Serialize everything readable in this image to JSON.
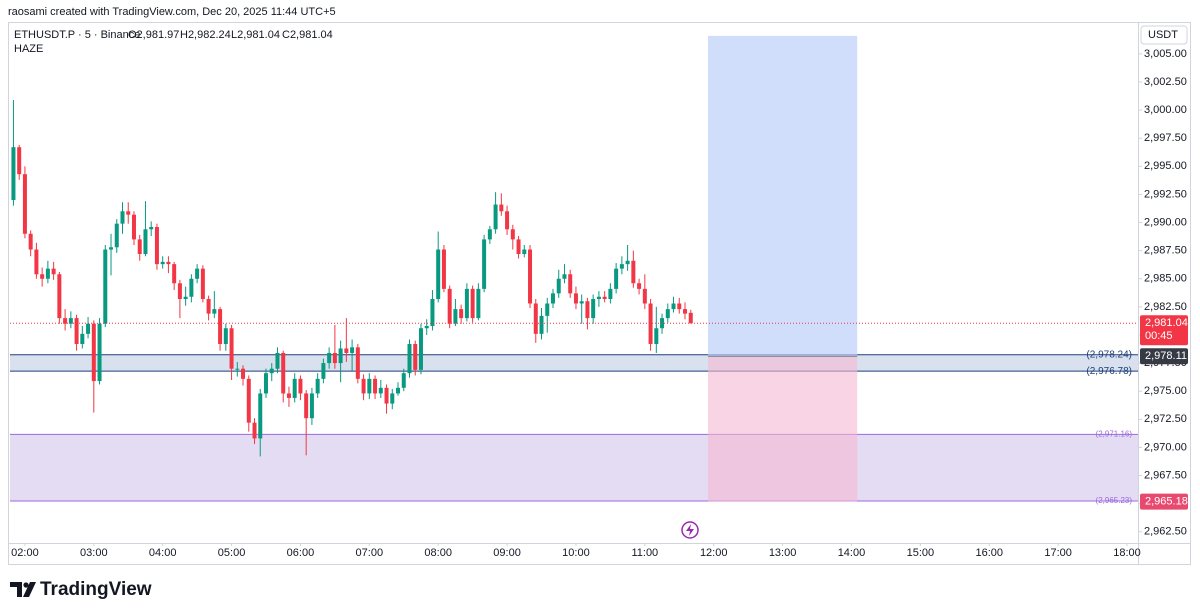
{
  "header": {
    "attribution": "raosami created with TradingView.com, Dec 20, 2025 11:44 UTC+5",
    "symbol": "ETHUSDT.P · 5 · Binance",
    "legend_values": [
      "O2,981.97",
      "H2,982.24",
      "L2,981.04",
      "C2,981.04"
    ],
    "indicator": "HAZE",
    "currency": "USDT",
    "logo": "TradingView"
  },
  "chart_data": {
    "type": "candlestick",
    "up_color": "#089981",
    "down_color": "#f23645",
    "grid": false,
    "x": [
      110,
      115,
      120,
      125,
      130,
      135,
      140,
      145,
      150,
      155,
      160,
      165,
      170,
      175,
      180,
      185,
      190,
      195,
      200,
      205,
      210,
      215,
      220,
      225,
      230,
      235,
      240,
      245,
      250,
      255,
      260,
      265,
      270,
      275,
      280,
      285,
      290,
      295,
      300,
      305,
      310,
      315,
      320,
      325,
      330,
      335,
      340,
      345,
      350,
      355,
      360,
      365,
      370,
      375,
      380,
      385,
      390,
      395,
      400,
      405,
      410,
      415,
      420,
      425,
      430,
      435,
      440,
      445,
      450,
      455,
      460,
      465,
      470,
      475,
      480,
      485,
      490,
      495,
      500,
      505,
      510,
      515,
      520,
      525,
      530,
      535,
      540,
      545,
      550,
      555,
      560,
      565,
      570,
      575,
      580,
      585,
      590,
      595,
      600,
      605,
      610,
      615,
      620,
      625,
      630,
      635,
      640,
      645,
      650,
      655,
      660,
      665,
      670,
      675,
      680,
      685,
      690,
      695,
      700
    ],
    "open": [
      2992.0,
      2996.7,
      2994.3,
      2989.0,
      2987.6,
      2985.4,
      2985.0,
      2985.9,
      2985.4,
      2981.5,
      2981.0,
      2981.5,
      2979.2,
      2980.1,
      2981.0,
      2975.9,
      2981.0,
      2987.6,
      2987.8,
      2989.9,
      2991.0,
      2990.7,
      2988.5,
      2987.2,
      2989.4,
      2989.6,
      2986.3,
      2986.5,
      2986.3,
      2984.6,
      2983.2,
      2983.4,
      2985.0,
      2985.9,
      2983.2,
      2981.9,
      2982.3,
      2979.2,
      2980.6,
      2977.0,
      2977.0,
      2976.1,
      2972.2,
      2970.8,
      2974.8,
      2976.6,
      2977.0,
      2978.4,
      2974.8,
      2974.4,
      2976.1,
      2974.8,
      2972.6,
      2974.8,
      2976.1,
      2977.5,
      2978.4,
      2977.5,
      2978.8,
      2978.4,
      2978.9,
      2976.1,
      2974.8,
      2976.1,
      2974.8,
      2975.3,
      2973.9,
      2974.8,
      2975.3,
      2976.6,
      2979.2,
      2976.9,
      2980.6,
      2980.8,
      2983.2,
      2987.6,
      2984.1,
      2981.0,
      2982.3,
      2981.5,
      2984.1,
      2981.5,
      2984.1,
      2988.5,
      2989.4,
      2991.6,
      2991.0,
      2989.4,
      2988.5,
      2987.2,
      2987.6,
      2982.8,
      2980.1,
      2981.7,
      2982.8,
      2983.7,
      2985.0,
      2985.4,
      2983.7,
      2982.8,
      2983.0,
      2981.5,
      2983.2,
      2983.4,
      2983.2,
      2984.1,
      2985.9,
      2986.3,
      2986.6,
      2984.6,
      2984.1,
      2982.8,
      2979.2,
      2980.6,
      2981.5,
      2982.3,
      2982.8,
      2982.3,
      2981.97
    ],
    "high": [
      3000.9,
      2996.9,
      2995.0,
      2989.3,
      2988.2,
      2986.0,
      2986.6,
      2986.5,
      2985.6,
      2982.3,
      2982.1,
      2981.8,
      2980.8,
      2981.6,
      2981.3,
      2981.5,
      2988.0,
      2989.0,
      2990.3,
      2991.8,
      2991.8,
      2991.0,
      2988.9,
      2991.9,
      2990.1,
      2989.9,
      2987.0,
      2987.0,
      2986.5,
      2984.9,
      2984.3,
      2985.4,
      2986.3,
      2986.2,
      2983.5,
      2983.9,
      2982.5,
      2981.0,
      2980.9,
      2977.6,
      2977.3,
      2976.4,
      2972.6,
      2975.2,
      2977.0,
      2977.5,
      2978.9,
      2978.6,
      2975.4,
      2976.6,
      2976.4,
      2975.1,
      2975.3,
      2976.6,
      2977.9,
      2978.9,
      2980.9,
      2979.5,
      2981.5,
      2979.6,
      2979.2,
      2976.5,
      2976.6,
      2976.4,
      2976.0,
      2975.6,
      2975.2,
      2975.8,
      2977.0,
      2979.6,
      2979.5,
      2981.0,
      2981.4,
      2984.0,
      2989.2,
      2988.0,
      2984.4,
      2983.2,
      2982.7,
      2984.6,
      2984.4,
      2984.6,
      2988.9,
      2989.7,
      2992.7,
      2992.6,
      2991.5,
      2989.8,
      2988.8,
      2988.0,
      2988.0,
      2983.2,
      2982.4,
      2983.3,
      2984.1,
      2985.8,
      2986.3,
      2985.8,
      2984.3,
      2983.6,
      2983.3,
      2983.6,
      2983.9,
      2983.9,
      2984.6,
      2986.4,
      2987.0,
      2988.0,
      2987.5,
      2985.0,
      2985.4,
      2983.2,
      2982.5,
      2981.9,
      2982.8,
      2983.4,
      2983.3,
      2982.9,
      2982.24
    ],
    "low": [
      2991.5,
      2993.8,
      2988.6,
      2987.0,
      2985.0,
      2984.3,
      2984.6,
      2984.9,
      2981.0,
      2980.4,
      2980.6,
      2978.6,
      2978.8,
      2979.7,
      2973.1,
      2975.6,
      2980.7,
      2985.3,
      2987.3,
      2989.0,
      2989.9,
      2988.0,
      2986.6,
      2987.0,
      2988.8,
      2985.8,
      2985.9,
      2985.5,
      2984.0,
      2981.5,
      2982.6,
      2982.9,
      2984.6,
      2982.9,
      2981.3,
      2981.5,
      2978.6,
      2978.6,
      2976.0,
      2976.3,
      2975.5,
      2971.4,
      2970.3,
      2969.2,
      2974.4,
      2975.9,
      2976.6,
      2974.0,
      2973.6,
      2974.0,
      2974.2,
      2969.3,
      2972.0,
      2974.4,
      2975.7,
      2977.0,
      2977.0,
      2975.8,
      2977.6,
      2976.8,
      2975.7,
      2974.2,
      2974.3,
      2974.3,
      2974.4,
      2973.0,
      2973.4,
      2974.6,
      2975.0,
      2976.2,
      2976.4,
      2976.5,
      2980.0,
      2980.4,
      2982.9,
      2983.8,
      2980.6,
      2980.8,
      2981.0,
      2981.2,
      2981.1,
      2981.3,
      2983.8,
      2988.1,
      2989.0,
      2990.6,
      2988.9,
      2987.6,
      2986.8,
      2986.9,
      2982.4,
      2979.3,
      2979.6,
      2980.2,
      2982.4,
      2983.3,
      2984.6,
      2983.3,
      2982.3,
      2981.0,
      2980.5,
      2981.0,
      2982.5,
      2982.9,
      2982.8,
      2983.7,
      2985.4,
      2985.7,
      2984.2,
      2983.6,
      2982.3,
      2978.6,
      2978.4,
      2980.1,
      2981.1,
      2982.0,
      2981.9,
      2981.4,
      2981.04
    ],
    "close": [
      2996.7,
      2994.3,
      2989.0,
      2987.6,
      2985.4,
      2985.0,
      2985.9,
      2985.4,
      2981.5,
      2981.0,
      2981.5,
      2979.2,
      2980.1,
      2981.0,
      2975.9,
      2981.0,
      2987.6,
      2987.8,
      2989.9,
      2991.0,
      2990.7,
      2988.5,
      2987.2,
      2989.4,
      2989.6,
      2986.3,
      2986.5,
      2986.3,
      2984.6,
      2983.2,
      2983.4,
      2985.0,
      2985.9,
      2983.2,
      2981.9,
      2982.3,
      2979.2,
      2980.6,
      2977.0,
      2977.0,
      2976.1,
      2972.2,
      2970.8,
      2974.8,
      2976.6,
      2977.0,
      2978.4,
      2974.8,
      2974.4,
      2976.1,
      2974.8,
      2972.6,
      2974.8,
      2976.1,
      2977.5,
      2978.4,
      2977.5,
      2978.8,
      2978.4,
      2978.9,
      2976.1,
      2974.8,
      2976.1,
      2974.8,
      2975.3,
      2973.9,
      2974.8,
      2975.3,
      2976.6,
      2979.2,
      2976.9,
      2980.6,
      2980.8,
      2983.2,
      2987.6,
      2984.1,
      2981.0,
      2982.3,
      2981.5,
      2984.1,
      2981.5,
      2984.1,
      2988.5,
      2989.4,
      2991.6,
      2991.0,
      2989.4,
      2988.5,
      2987.2,
      2987.6,
      2982.8,
      2980.1,
      2981.7,
      2982.8,
      2983.7,
      2985.0,
      2985.4,
      2983.7,
      2982.8,
      2983.0,
      2981.5,
      2983.2,
      2983.4,
      2983.2,
      2984.1,
      2985.9,
      2986.3,
      2986.6,
      2984.6,
      2984.1,
      2982.8,
      2979.2,
      2980.6,
      2981.5,
      2982.3,
      2982.8,
      2982.3,
      2981.9,
      2981.04
    ],
    "xlim": [
      107,
      1089.6
    ],
    "xticks": [
      {
        "value": 120,
        "label": "02:00"
      },
      {
        "value": 180,
        "label": "03:00"
      },
      {
        "value": 240,
        "label": "04:00"
      },
      {
        "value": 300,
        "label": "05:00"
      },
      {
        "value": 360,
        "label": "06:00"
      },
      {
        "value": 420,
        "label": "07:00"
      },
      {
        "value": 480,
        "label": "08:00"
      },
      {
        "value": 540,
        "label": "09:00"
      },
      {
        "value": 600,
        "label": "10:00"
      },
      {
        "value": 660,
        "label": "11:00"
      },
      {
        "value": 720,
        "label": "12:00"
      },
      {
        "value": 780,
        "label": "13:00"
      },
      {
        "value": 840,
        "label": "14:00"
      },
      {
        "value": 900,
        "label": "15:00"
      },
      {
        "value": 960,
        "label": "16:00"
      },
      {
        "value": 1020,
        "label": "17:00"
      },
      {
        "value": 1080,
        "label": "18:00"
      }
    ],
    "ylim": [
      2961.5,
      3007.3
    ],
    "yticks": [
      {
        "value": 2962.5,
        "label": "2,962.50"
      },
      {
        "value": 2965,
        "label": "2,965.00"
      },
      {
        "value": 2967.5,
        "label": "2,967.50"
      },
      {
        "value": 2970,
        "label": "2,970.00"
      },
      {
        "value": 2972.5,
        "label": "2,972.50"
      },
      {
        "value": 2975,
        "label": "2,975.00"
      },
      {
        "value": 2977.5,
        "label": "2,977.50"
      },
      {
        "value": 2980,
        "label": "2,980.00"
      },
      {
        "value": 2982.5,
        "label": "2,982.50"
      },
      {
        "value": 2985,
        "label": "2,985.00"
      },
      {
        "value": 2987.5,
        "label": "2,987.50"
      },
      {
        "value": 2990,
        "label": "2,990.00"
      },
      {
        "value": 2992.5,
        "label": "2,992.50"
      },
      {
        "value": 2995,
        "label": "2,995.00"
      },
      {
        "value": 2997.5,
        "label": "2,997.50"
      },
      {
        "value": 3000,
        "label": "3,000.00"
      },
      {
        "value": 3002.5,
        "label": "3,002.50"
      },
      {
        "value": 3005,
        "label": "3,005.00"
      }
    ],
    "zones": [
      {
        "top": {
          "value": 2978.24,
          "label": "(2,978.24)"
        },
        "bottom": {
          "value": 2976.78,
          "label": "(2,976.78)"
        },
        "fill": "#d9e1ee",
        "stroke": "#1e3f7a"
      },
      {
        "top": {
          "value": 2971.16,
          "label": "(2,971.16)"
        },
        "bottom": {
          "value": 2965.23,
          "label": "(2,965.23)"
        },
        "fill": "#e4dcf2",
        "stroke": "#9c6ade"
      }
    ],
    "position": {
      "start": 715,
      "end": 845,
      "entry": 2978.11,
      "target": 3006.6,
      "stop": 2965.18,
      "profit_color": "#bcd0fb",
      "loss_color": "#f5b8d2"
    },
    "price_tags": [
      {
        "value": 2981.04,
        "label": "2,981.04",
        "sub": "00:45",
        "color": "#f23645",
        "dotted_line": true
      },
      {
        "value": 2978.11,
        "label": "2,978.11",
        "color": "#363a45"
      },
      {
        "value": 2965.18,
        "label": "2,965.18",
        "color": "#e84a6f"
      }
    ]
  }
}
